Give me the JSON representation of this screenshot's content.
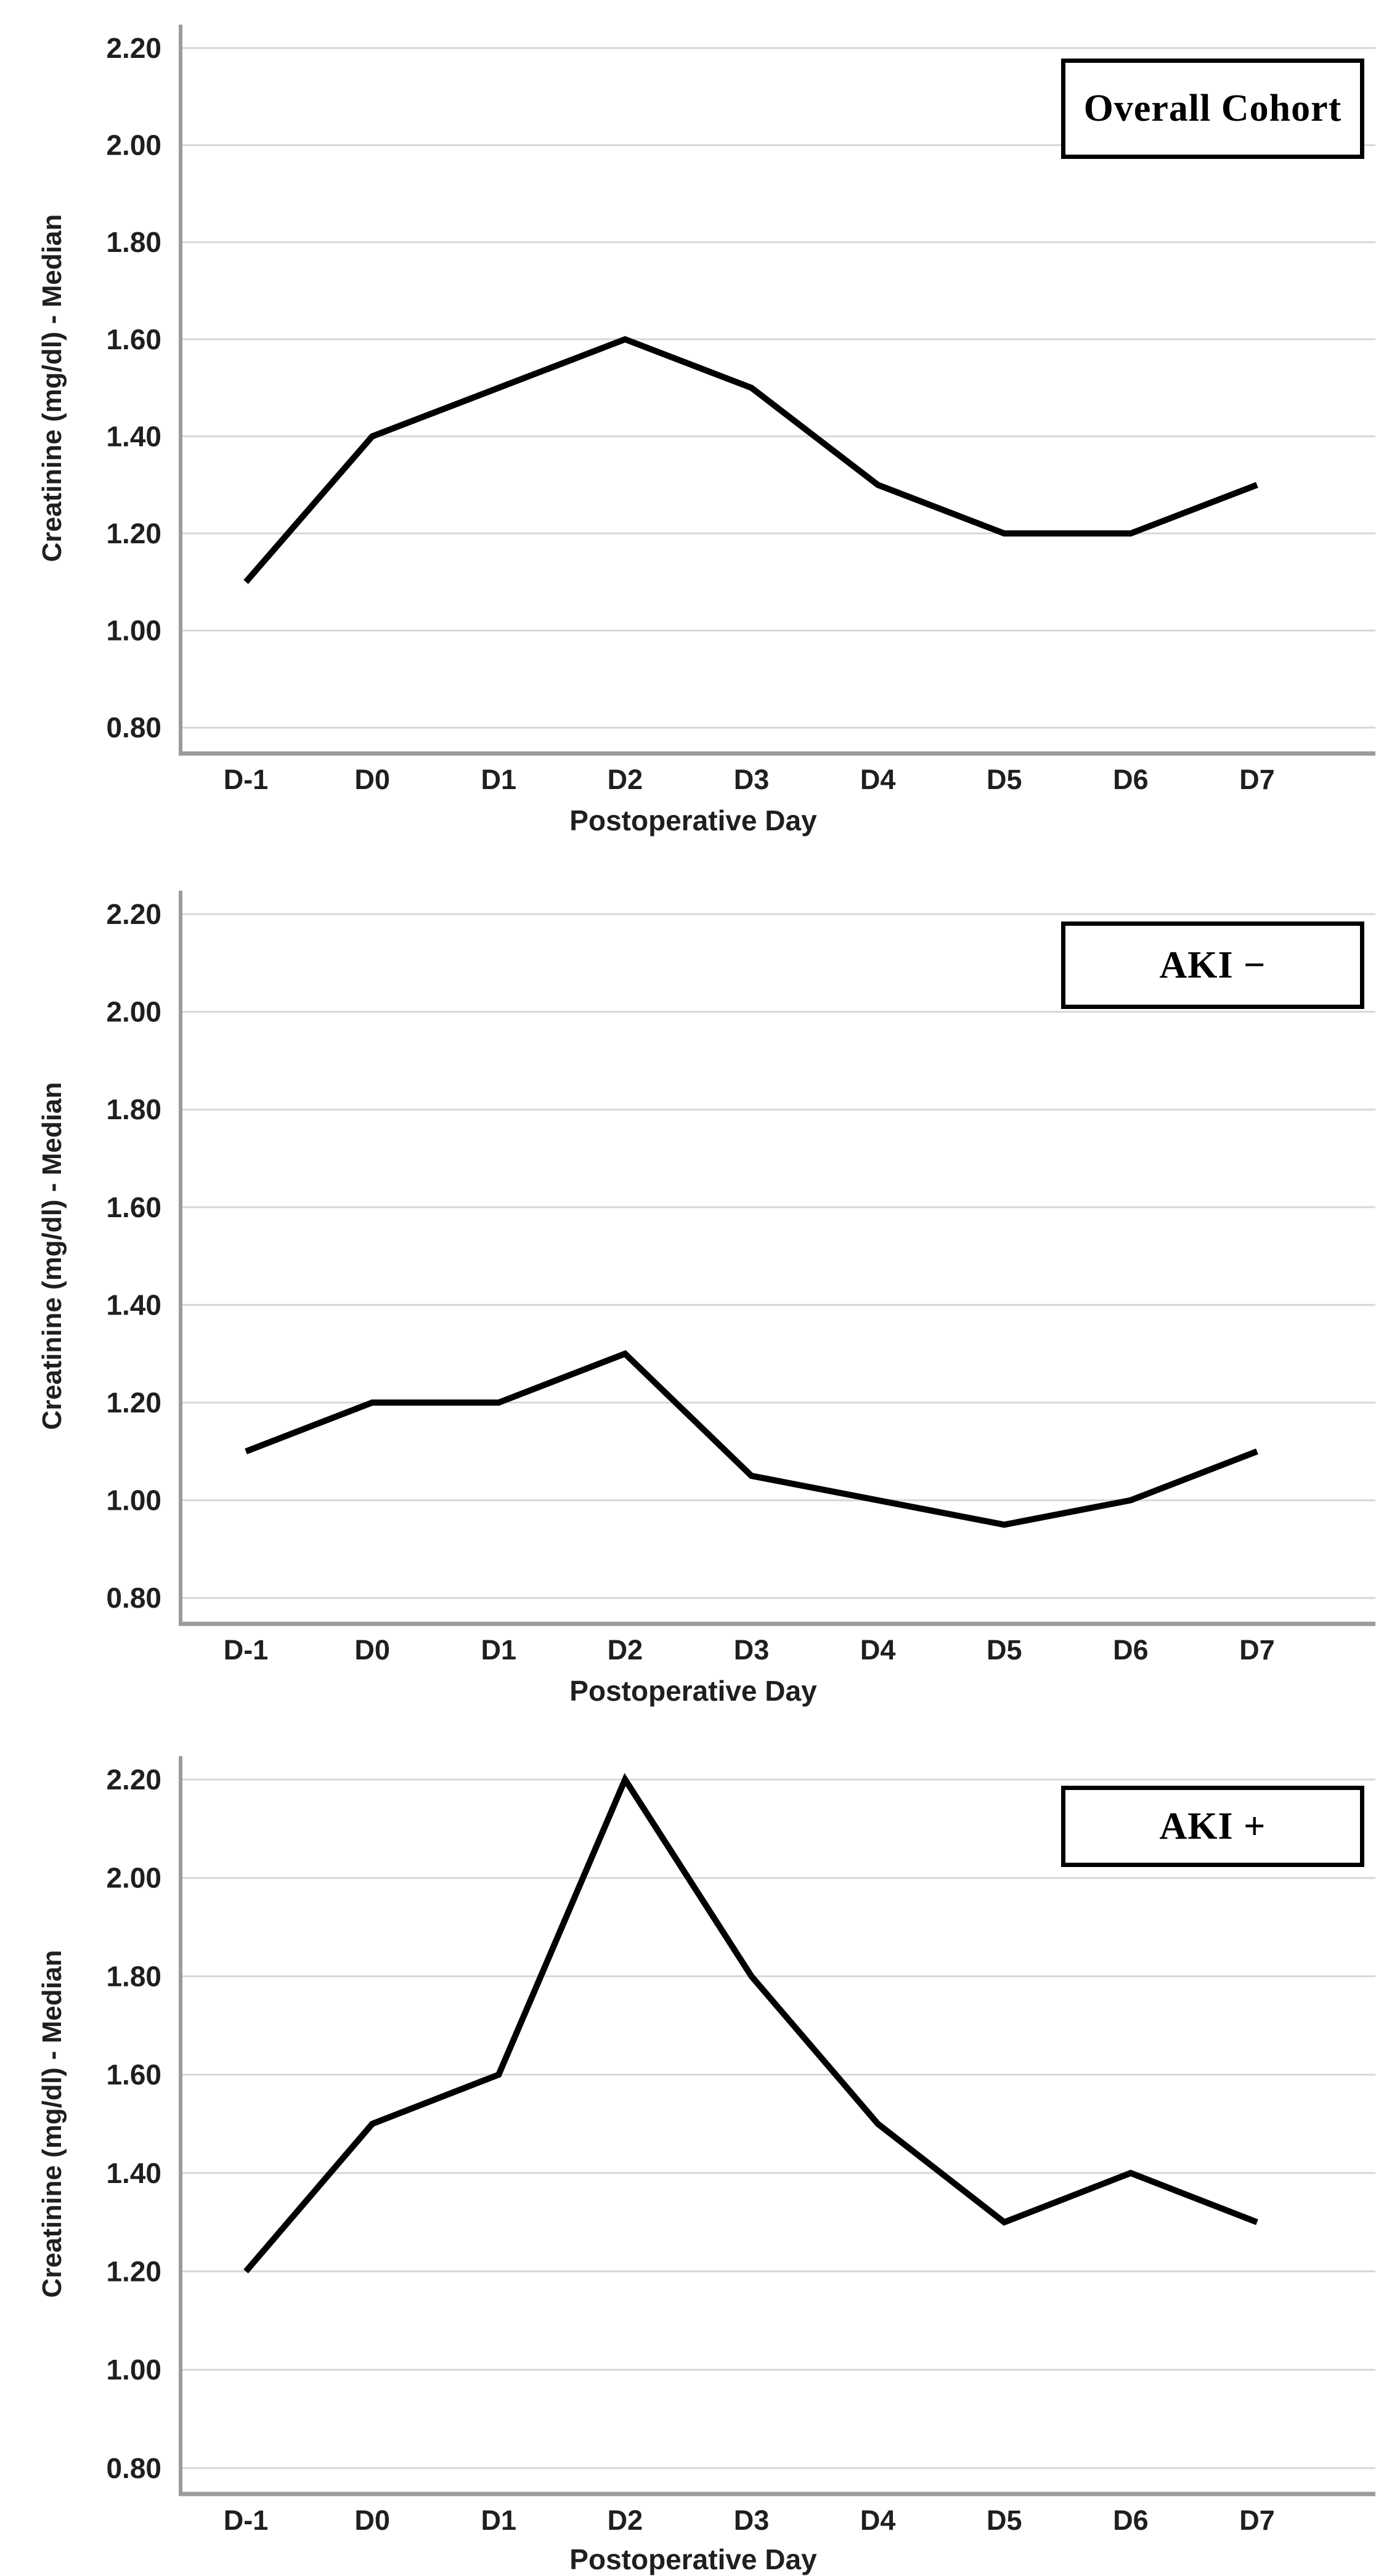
{
  "figure": {
    "background_color": "#ffffff",
    "text_color": "#1f1f1f",
    "gridline_color": "#d7d7d7",
    "axis_color": "#9b9b9b",
    "series_color": "#000000"
  },
  "chart_data": [
    {
      "type": "line",
      "panel_label": "Overall Cohort",
      "categories": [
        "D-1",
        "D0",
        "D1",
        "D2",
        "D3",
        "D4",
        "D5",
        "D6",
        "D7"
      ],
      "values": [
        1.1,
        1.4,
        1.5,
        1.6,
        1.5,
        1.3,
        1.2,
        1.2,
        1.3
      ],
      "xlabel": "Postoperative Day",
      "ylabel": "Creatinine (mg/dl) - Median",
      "yticks": [
        2.2,
        2.0,
        1.8,
        1.6,
        1.4,
        1.2,
        1.0,
        0.8
      ],
      "ytick_labels": [
        "2.20",
        "2.00",
        "1.80",
        "1.60",
        "1.40",
        "1.20",
        "1.00",
        "0.80"
      ],
      "ylim": [
        0.8,
        2.2
      ],
      "grid": "horizontal",
      "legend": "none",
      "line_color": "#000000"
    },
    {
      "type": "line",
      "panel_label": "AKI −",
      "categories": [
        "D-1",
        "D0",
        "D1",
        "D2",
        "D3",
        "D4",
        "D5",
        "D6",
        "D7"
      ],
      "values": [
        1.1,
        1.2,
        1.2,
        1.3,
        1.05,
        1.0,
        0.95,
        1.0,
        1.1
      ],
      "xlabel": "Postoperative Day",
      "ylabel": "Creatinine (mg/dl) - Median",
      "yticks": [
        2.2,
        2.0,
        1.8,
        1.6,
        1.4,
        1.2,
        1.0,
        0.8
      ],
      "ytick_labels": [
        "2.20",
        "2.00",
        "1.80",
        "1.60",
        "1.40",
        "1.20",
        "1.00",
        "0.80"
      ],
      "ylim": [
        0.8,
        2.2
      ],
      "grid": "horizontal",
      "legend": "none",
      "line_color": "#000000"
    },
    {
      "type": "line",
      "panel_label": "AKI +",
      "categories": [
        "D-1",
        "D0",
        "D1",
        "D2",
        "D3",
        "D4",
        "D5",
        "D6",
        "D7"
      ],
      "values": [
        1.2,
        1.5,
        1.6,
        2.2,
        1.8,
        1.5,
        1.3,
        1.4,
        1.3
      ],
      "xlabel": "Postoperative Day",
      "ylabel": "Creatinine (mg/dl) - Median",
      "yticks": [
        2.2,
        2.0,
        1.8,
        1.6,
        1.4,
        1.2,
        1.0,
        0.8
      ],
      "ytick_labels": [
        "2.20",
        "2.00",
        "1.80",
        "1.60",
        "1.40",
        "1.20",
        "1.00",
        "0.80"
      ],
      "ylim": [
        0.8,
        2.2
      ],
      "grid": "horizontal",
      "legend": "none",
      "line_color": "#000000"
    }
  ]
}
